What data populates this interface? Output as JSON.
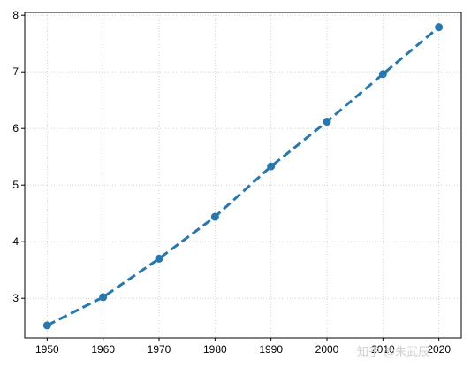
{
  "chart_data": {
    "type": "line",
    "title": "",
    "xlabel": "",
    "ylabel": "",
    "x": [
      1950,
      1960,
      1970,
      1980,
      1990,
      2000,
      2010,
      2020
    ],
    "series": [
      {
        "values": [
          2.52,
          3.02,
          3.7,
          4.44,
          5.33,
          6.12,
          6.96,
          7.79
        ]
      }
    ],
    "xlim": [
      1946,
      2024
    ],
    "ylim": [
      2.3,
      8.05
    ],
    "xticks": [
      1950,
      1960,
      1970,
      1980,
      1990,
      2000,
      2010,
      2020
    ],
    "yticks": [
      3,
      4,
      5,
      6,
      7,
      8
    ],
    "grid": true,
    "grid_style": "dotted",
    "line_style": "dashed",
    "marker": "circle",
    "colors": {
      "series": "#2878b0",
      "grid": "#cccccc",
      "axis": "#000000"
    }
  },
  "watermark": "知乎 @朱武辰"
}
